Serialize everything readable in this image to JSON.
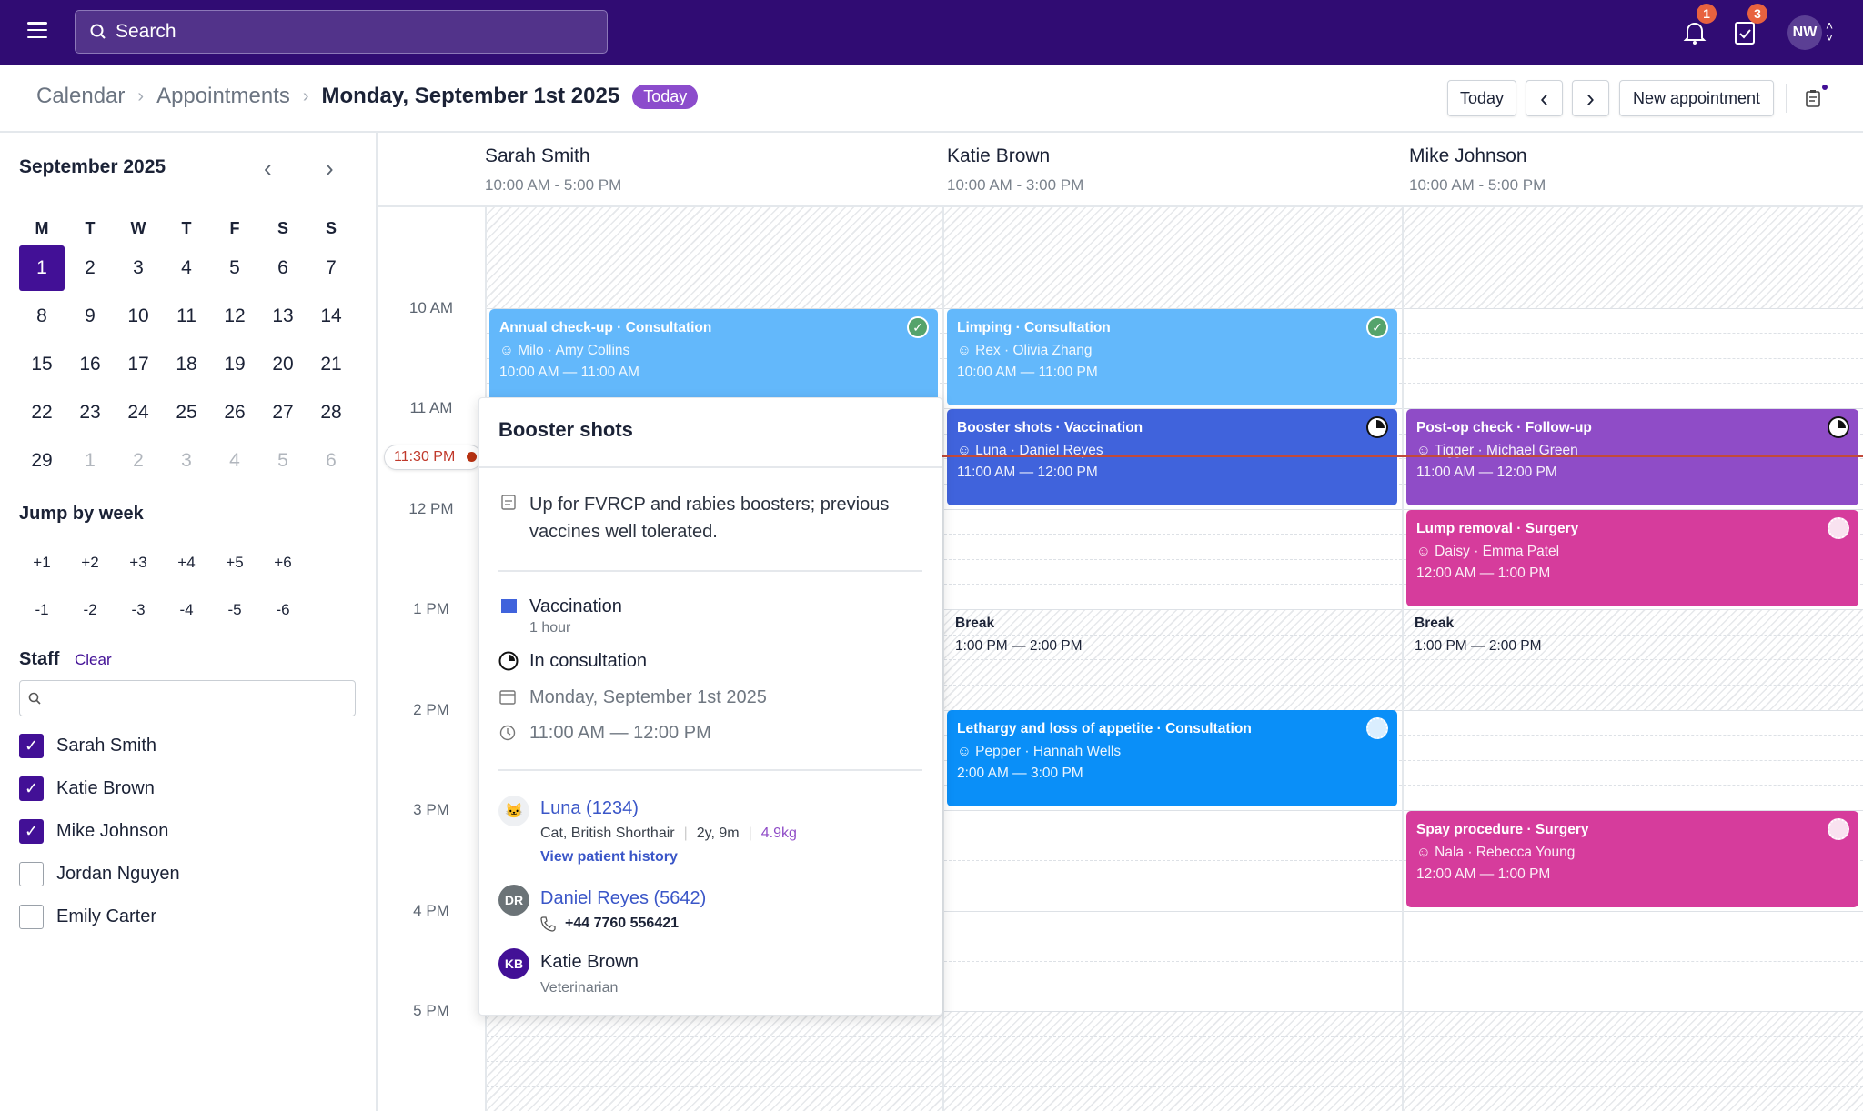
{
  "topbar": {
    "search_placeholder": "Search",
    "notifications_count": "1",
    "tasks_count": "3",
    "user_initials": "NW"
  },
  "breadcrumb": {
    "items": [
      "Calendar",
      "Appointments"
    ],
    "current": "Monday, September 1st 2025",
    "today_badge": "Today"
  },
  "toolbar": {
    "today": "Today",
    "prev": "‹",
    "next": "›",
    "new_appointment": "New appointment"
  },
  "sidebar": {
    "month": "September 2025",
    "weekdays": [
      "M",
      "T",
      "W",
      "T",
      "F",
      "S",
      "S"
    ],
    "days": [
      "1",
      "2",
      "3",
      "4",
      "5",
      "6",
      "7",
      "8",
      "9",
      "10",
      "11",
      "12",
      "13",
      "14",
      "15",
      "16",
      "17",
      "18",
      "19",
      "20",
      "21",
      "22",
      "23",
      "24",
      "25",
      "26",
      "27",
      "28",
      "29",
      "1",
      "2",
      "3",
      "4",
      "5",
      "6"
    ],
    "selected_day": "1",
    "days_with_appointments": [
      "8",
      "9",
      "10",
      "19",
      "22",
      "23",
      "24",
      "25",
      "26"
    ],
    "jump_title": "Jump by week",
    "jump_forward": [
      "+1",
      "+2",
      "+3",
      "+4",
      "+5",
      "+6"
    ],
    "jump_back": [
      "-1",
      "-2",
      "-3",
      "-4",
      "-5",
      "-6"
    ],
    "staff_title": "Staff",
    "staff_clear": "Clear",
    "staff": [
      {
        "name": "Sarah Smith",
        "checked": true
      },
      {
        "name": "Katie Brown",
        "checked": true
      },
      {
        "name": "Mike Johnson",
        "checked": true
      },
      {
        "name": "Jordan Nguyen",
        "checked": false
      },
      {
        "name": "Emily Carter",
        "checked": false
      }
    ]
  },
  "columns": [
    {
      "name": "Sarah Smith",
      "hours": "10:00 AM - 5:00 PM"
    },
    {
      "name": "Katie Brown",
      "hours": "10:00 AM - 3:00 PM"
    },
    {
      "name": "Mike Johnson",
      "hours": "10:00 AM - 5:00 PM"
    }
  ],
  "hours": [
    "10 AM",
    "11 AM",
    "12 PM",
    "1 PM",
    "2 PM",
    "3 PM",
    "4 PM",
    "5 PM"
  ],
  "now_label": "11:30 PM",
  "events": [
    {
      "title": "Annual check-up · Consultation",
      "pet": "Milo · Amy Collins",
      "time": "10:00 AM — 11:00 AM",
      "color": "#63b8fb",
      "status": "completed"
    },
    {
      "title": "Limping · Consultation",
      "pet": "Rex · Olivia Zhang",
      "time": "10:00 AM — 11:00 PM",
      "color": "#63b8fb",
      "status": "completed"
    },
    {
      "title": "Booster shots · Vaccination",
      "pet": "Luna · Daniel Reyes",
      "time": "11:00 AM — 12:00 PM",
      "color": "#4063dc",
      "status": "in-consultation"
    },
    {
      "title": "Lethargy and loss of appetite · Consultation",
      "pet": "Pepper · Hannah Wells",
      "time": "2:00 AM — 3:00 PM",
      "color": "#0a8ff8",
      "status": "scheduled"
    },
    {
      "title": "Post-op check · Follow-up",
      "pet": "Tigger · Michael Green",
      "time": "11:00 AM — 12:00 PM",
      "color": "#8f4cc7",
      "status": "in-consultation"
    },
    {
      "title": "Lump removal · Surgery",
      "pet": "Daisy · Emma Patel",
      "time": "12:00 AM — 1:00 PM",
      "color": "#d63c9c",
      "status": "scheduled"
    },
    {
      "title": "Spay procedure · Surgery",
      "pet": "Nala · Rebecca Young",
      "time": "12:00 AM — 1:00 PM",
      "color": "#d63c9c",
      "status": "scheduled"
    }
  ],
  "breaks": [
    {
      "label": "Break",
      "time": "1:00 PM — 2:00 PM"
    },
    {
      "label": "Break",
      "time": "1:00 PM — 2:00 PM"
    }
  ],
  "popover": {
    "title": "Booster shots",
    "note": "Up for FVRCP and rabies boosters; previous vaccines well tolerated.",
    "type": "Vaccination",
    "type_color": "#4063dc",
    "duration": "1 hour",
    "status": "In consultation",
    "date": "Monday, September 1st 2025",
    "time": "11:00 AM — 12:00 PM",
    "patient": "Luna (1234)",
    "species": "Cat, British Shorthair",
    "age": "2y, 9m",
    "weight": "4.9kg",
    "history_link": "View patient history",
    "owner": "Daniel Reyes (5642)",
    "owner_initials": "DR",
    "phone": "+44 7760 556421",
    "vet": "Katie Brown",
    "vet_initials": "KB",
    "vet_role": "Veterinarian"
  }
}
